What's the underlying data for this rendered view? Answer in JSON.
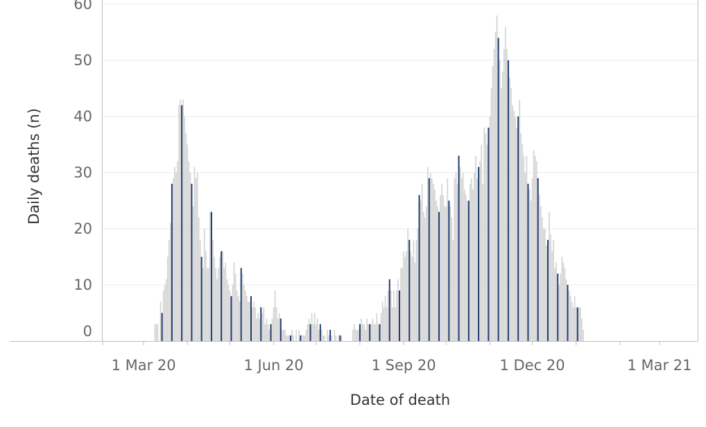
{
  "chart_data": {
    "type": "bar",
    "title": "",
    "xlabel": "Date of death",
    "ylabel": "Daily deaths (n)",
    "ylim": [
      0,
      60
    ],
    "y_ticks": [
      0,
      10,
      20,
      30,
      40,
      50,
      60
    ],
    "x_ticks": [
      "1 Mar 20",
      "1 Jun 20",
      "1 Sep 20",
      "1 Dec 20",
      "1 Mar 21"
    ],
    "xlim": [
      "2020-02-01",
      "2021-03-28"
    ],
    "grid": "horizontal",
    "legend": "none",
    "colors": {
      "bars": "#d3d3d3",
      "highlight": "#1f3d6e",
      "grid": "#ebebeb",
      "axis": "#bdbdbd"
    },
    "highlight": "weekly thin dark bar overlaid on the grey daily bars",
    "series": [
      {
        "start_date": "2020-02-25",
        "interval": "1 day",
        "values": [
          0,
          0,
          0,
          0,
          0,
          0,
          0,
          0,
          0,
          0,
          0,
          0,
          0,
          3,
          3,
          3,
          0,
          7,
          5,
          9,
          10,
          11,
          15,
          18,
          21,
          28,
          29,
          31,
          30,
          32,
          42,
          43,
          42,
          43,
          40,
          37,
          35,
          32,
          30,
          28,
          24,
          31,
          29,
          30,
          22,
          18,
          15,
          13,
          20,
          16,
          13,
          13,
          23,
          23,
          18,
          15,
          13,
          11,
          13,
          15,
          16,
          16,
          13,
          14,
          11,
          10,
          9,
          8,
          10,
          14,
          12,
          9,
          8,
          7,
          13,
          12,
          10,
          9,
          8,
          7,
          7,
          8,
          6,
          7,
          6,
          4,
          5,
          4,
          6,
          5,
          6,
          3,
          4,
          3,
          2,
          3,
          4,
          6,
          9,
          6,
          4,
          5,
          4,
          2,
          2,
          2,
          1,
          1,
          1,
          1,
          2,
          1,
          0,
          2,
          0,
          2,
          1,
          1,
          1,
          1,
          2,
          3,
          4,
          3,
          5,
          3,
          5,
          3,
          4,
          2,
          3,
          2,
          1,
          1,
          0,
          2,
          1,
          2,
          1,
          0,
          2,
          1,
          0,
          1,
          1,
          1,
          0,
          0,
          0,
          0,
          0,
          0,
          0,
          2,
          3,
          2,
          2,
          2,
          3,
          4,
          3,
          3,
          2,
          4,
          3,
          3,
          3,
          4,
          3,
          3,
          5,
          3,
          3,
          5,
          7,
          6,
          8,
          6,
          9,
          11,
          9,
          6,
          9,
          6,
          9,
          11,
          9,
          13,
          13,
          16,
          15,
          16,
          20,
          18,
          16,
          15,
          18,
          14,
          18,
          20,
          26,
          25,
          28,
          23,
          22,
          24,
          31,
          29,
          30,
          29,
          28,
          27,
          25,
          24,
          23,
          26,
          28,
          26,
          24,
          24,
          29,
          25,
          24,
          22,
          18,
          29,
          30,
          28,
          33,
          31,
          29,
          30,
          27,
          26,
          25,
          25,
          28,
          29,
          27,
          30,
          33,
          29,
          31,
          32,
          35,
          28,
          38,
          37,
          35,
          38,
          40,
          45,
          49,
          52,
          55,
          58,
          54,
          50,
          45,
          48,
          52,
          56,
          52,
          50,
          47,
          45,
          42,
          41,
          40,
          38,
          40,
          43,
          37,
          35,
          33,
          30,
          33,
          28,
          27,
          25,
          29,
          34,
          33,
          32,
          29,
          26,
          24,
          22,
          20,
          20,
          17,
          18,
          23,
          19,
          16,
          18,
          13,
          14,
          12,
          10,
          12,
          15,
          14,
          13,
          11,
          10,
          9,
          8,
          7,
          6,
          8,
          6,
          6,
          6,
          6,
          4,
          2
        ]
      }
    ]
  }
}
